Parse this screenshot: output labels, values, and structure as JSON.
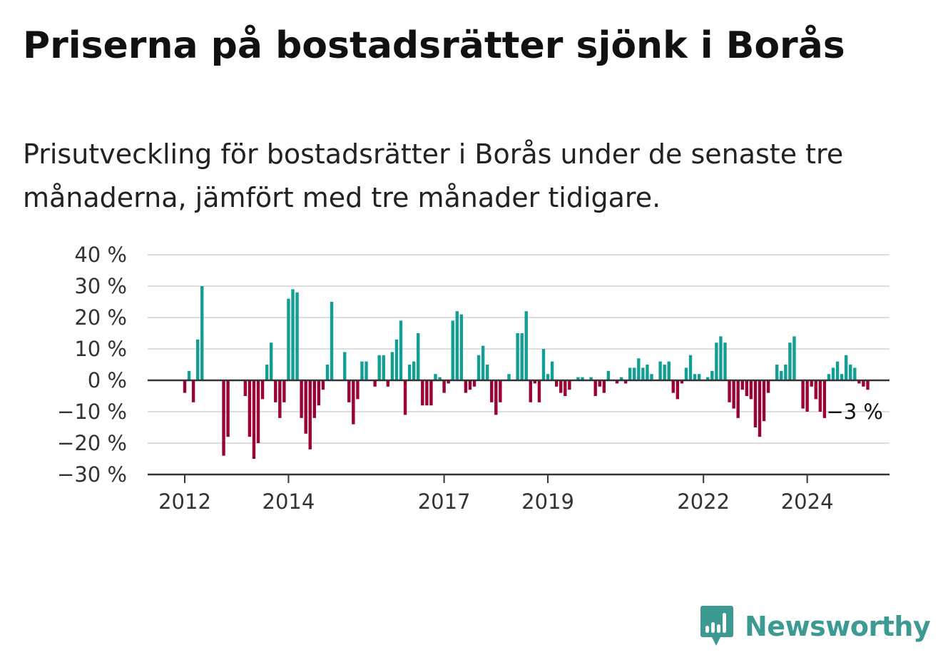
{
  "header": {
    "title": "Priserna på bostadsrätter sjönk i Borås",
    "subtitle": "Prisutveckling för bostadsrätter i Borås under de senaste tre månaderna, jämfört med tre månader tidigare."
  },
  "brand": {
    "name": "Newsworthy",
    "icon": "newsworthy-logo-icon",
    "color": "#3d9a92"
  },
  "chart_data": {
    "type": "bar",
    "title": "Priserna på bostadsrätter sjönk i Borås",
    "subtitle": "Prisutveckling för bostadsrätter i Borås under de senaste tre månaderna, jämfört med tre månader tidigare.",
    "unit": "%",
    "ylim": [
      -30,
      40
    ],
    "y_ticks": [
      40,
      30,
      20,
      10,
      0,
      -10,
      -20,
      -30
    ],
    "y_tick_labels": [
      "40 %",
      "30 %",
      "20 %",
      "10 %",
      "0 %",
      "−10 %",
      "−20 %",
      "−30 %"
    ],
    "x_tick_labels": [
      {
        "label": "2012",
        "index": 0
      },
      {
        "label": "2014",
        "index": 24
      },
      {
        "label": "2017",
        "index": 60
      },
      {
        "label": "2019",
        "index": 84
      },
      {
        "label": "2022",
        "index": 120
      },
      {
        "label": "2024",
        "index": 144
      }
    ],
    "x_start": "2012-01",
    "frequency": "monthly",
    "grid": true,
    "colors": {
      "positive": "#129e94",
      "negative": "#9b0036",
      "grid": "#dddddd",
      "axis": "#333333"
    },
    "annotation": {
      "text": "−3 %"
    },
    "values": [
      -4,
      3,
      -7,
      13,
      30,
      null,
      null,
      null,
      null,
      -24,
      -18,
      null,
      null,
      null,
      -5,
      -18,
      -25,
      -20,
      -6,
      5,
      12,
      -7,
      -12,
      -7,
      26,
      29,
      28,
      -12,
      -17,
      -22,
      -12,
      -8,
      -3,
      5,
      25,
      null,
      null,
      9,
      -7,
      -14,
      -6,
      6,
      6,
      null,
      -2,
      8,
      8,
      -2,
      9,
      13,
      19,
      -11,
      5,
      6,
      15,
      -8,
      -8,
      -8,
      2,
      1,
      -4,
      -1,
      19,
      22,
      21,
      -4,
      -3,
      -2,
      8,
      11,
      5,
      -7,
      -11,
      -7,
      null,
      2,
      null,
      15,
      15,
      22,
      -7,
      -1,
      -7,
      10,
      2,
      6,
      -2,
      -4,
      -5,
      -3,
      null,
      1,
      1,
      null,
      1,
      -5,
      -2,
      -4,
      3,
      null,
      -1,
      1,
      -1,
      4,
      4,
      7,
      4,
      5,
      2,
      null,
      6,
      5,
      6,
      -4,
      -6,
      -1,
      4,
      8,
      2,
      2,
      null,
      1,
      3,
      12,
      14,
      12,
      -7,
      -9,
      -12,
      -3,
      -5,
      -6,
      -15,
      -18,
      -13,
      -4,
      null,
      5,
      3,
      5,
      12,
      14,
      null,
      -9,
      -10,
      -2,
      -6,
      -10,
      -12,
      2,
      4,
      6,
      2,
      8,
      5,
      4,
      -1,
      -2,
      -3
    ]
  }
}
